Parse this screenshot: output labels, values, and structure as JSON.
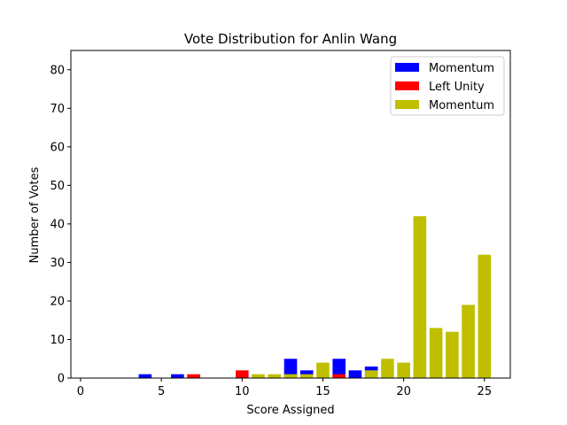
{
  "chart_data": {
    "type": "bar",
    "title": "Vote Distribution for Anlin Wang",
    "xlabel": "Score Assigned",
    "ylabel": "Number of Votes",
    "xlim": [
      -0.6,
      26.6
    ],
    "ylim": [
      0,
      85
    ],
    "xticks": [
      0,
      5,
      10,
      15,
      20,
      25
    ],
    "yticks": [
      0,
      10,
      20,
      30,
      40,
      50,
      60,
      70,
      80
    ],
    "grid": false,
    "legend_position": "top-right",
    "series": [
      {
        "name": "Momentum",
        "color": "#0000ff",
        "points": [
          [
            4,
            1
          ],
          [
            6,
            1
          ],
          [
            13,
            5
          ],
          [
            14,
            2
          ],
          [
            16,
            5
          ],
          [
            17,
            2
          ],
          [
            18,
            3
          ]
        ]
      },
      {
        "name": "Left Unity",
        "color": "#ff0000",
        "points": [
          [
            7,
            1
          ],
          [
            10,
            2
          ],
          [
            16,
            1
          ]
        ]
      },
      {
        "name": "Momentum",
        "color": "#bfbf00",
        "points": [
          [
            11,
            1
          ],
          [
            12,
            1
          ],
          [
            13,
            1
          ],
          [
            14,
            1
          ],
          [
            15,
            4
          ],
          [
            18,
            2
          ],
          [
            19,
            5
          ],
          [
            20,
            4
          ],
          [
            21,
            42
          ],
          [
            22,
            13
          ],
          [
            23,
            12
          ],
          [
            24,
            19
          ],
          [
            25,
            32
          ]
        ]
      }
    ]
  }
}
